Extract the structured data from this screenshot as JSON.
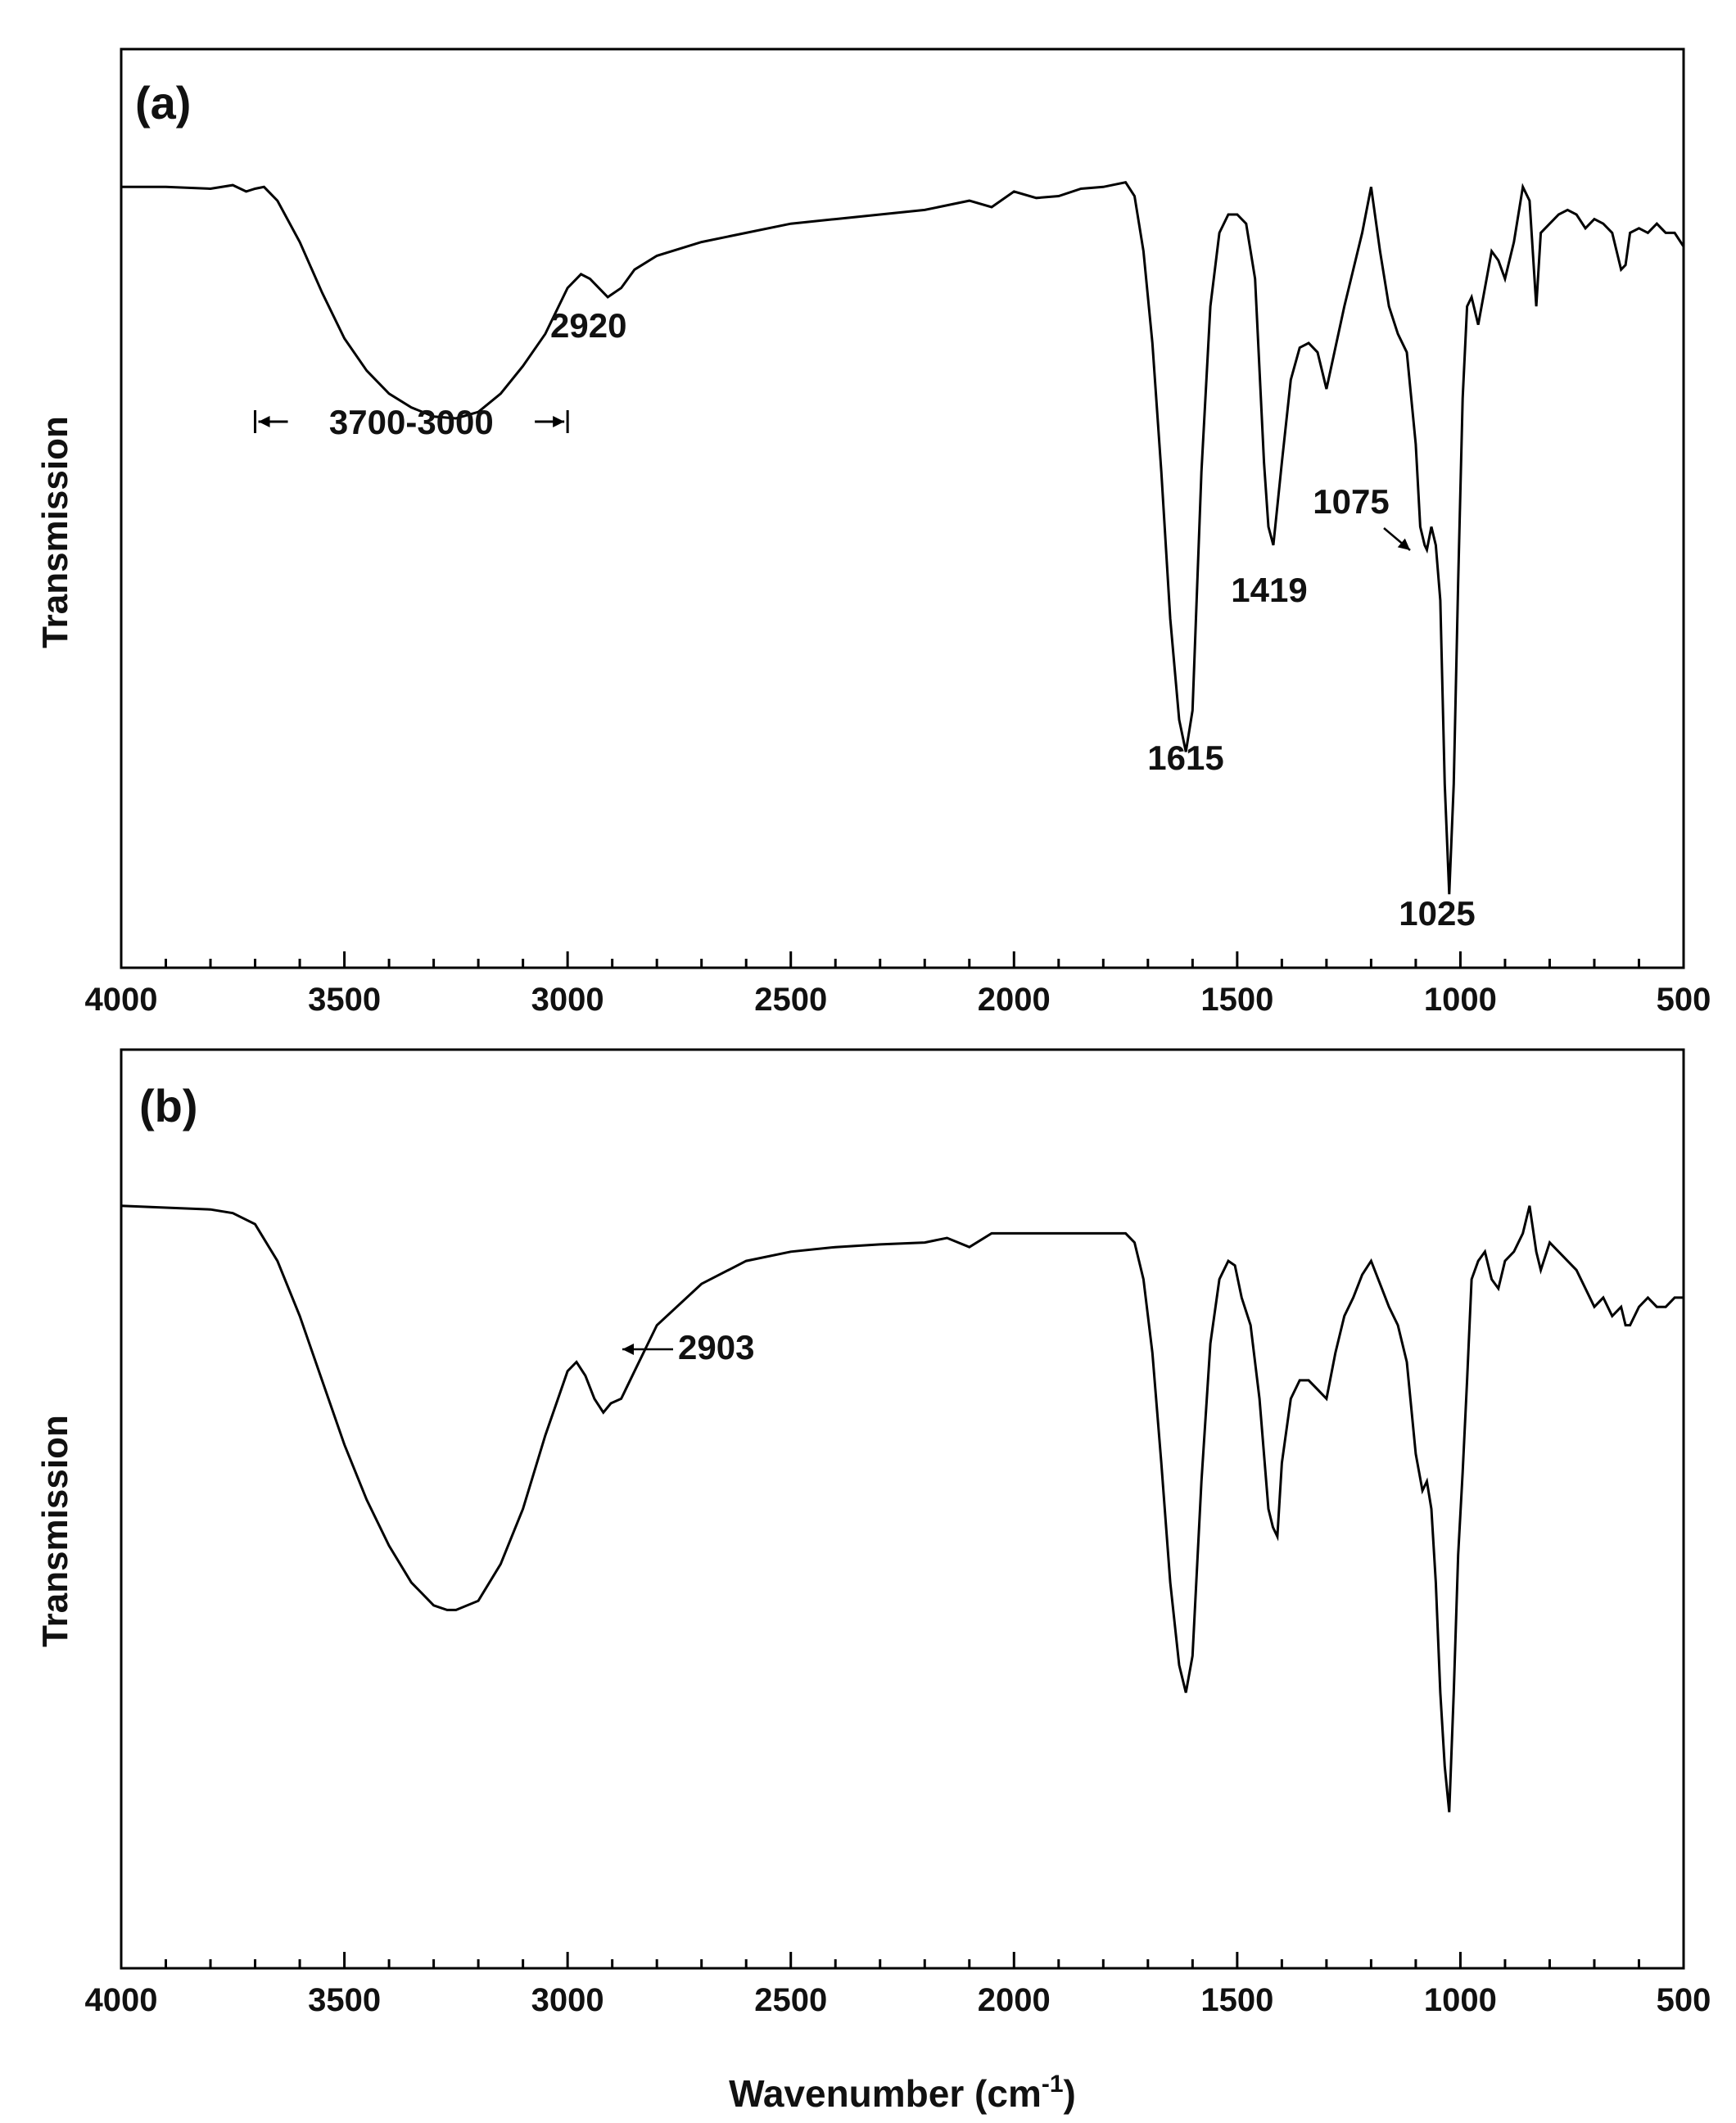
{
  "chart_data": [
    {
      "type": "line",
      "panel_label": "(a)",
      "xlabel": "",
      "ylabel": "Transmission",
      "xlim": [
        4000,
        500
      ],
      "x_reversed": true,
      "xticks": [
        4000,
        3500,
        3000,
        2500,
        2000,
        1500,
        1000,
        500
      ],
      "xtick_labels": [
        "4000",
        "3500",
        "3000",
        "2500",
        "2000",
        "1500",
        "1000",
        "500"
      ],
      "y_ticks_shown": false,
      "ylim": [
        0,
        1
      ],
      "grid": false,
      "legend": "none",
      "series": [
        {
          "x": [
            4000,
            3900,
            3800,
            3750,
            3720,
            3700,
            3680,
            3650,
            3600,
            3550,
            3500,
            3450,
            3400,
            3350,
            3300,
            3250,
            3200,
            3150,
            3100,
            3050,
            3000,
            2970,
            2950,
            2930,
            2910,
            2880,
            2850,
            2800,
            2700,
            2600,
            2500,
            2400,
            2300,
            2200,
            2100,
            2050,
            2000,
            1950,
            1900,
            1850,
            1800,
            1750,
            1730,
            1710,
            1690,
            1670,
            1650,
            1630,
            1615,
            1600,
            1580,
            1560,
            1540,
            1520,
            1500,
            1480,
            1460,
            1440,
            1430,
            1419,
            1400,
            1380,
            1360,
            1340,
            1320,
            1300,
            1280,
            1260,
            1240,
            1220,
            1200,
            1180,
            1160,
            1140,
            1120,
            1100,
            1090,
            1080,
            1075,
            1065,
            1055,
            1045,
            1035,
            1025,
            1015,
            1005,
            995,
            985,
            975,
            960,
            945,
            930,
            915,
            900,
            880,
            860,
            845,
            830,
            820,
            800,
            780,
            760,
            740,
            720,
            700,
            680,
            660,
            640,
            630,
            620,
            600,
            580,
            560,
            540,
            520,
            500
          ],
          "y": [
            0.85,
            0.85,
            0.848,
            0.852,
            0.845,
            0.848,
            0.85,
            0.835,
            0.79,
            0.735,
            0.685,
            0.65,
            0.625,
            0.61,
            0.6,
            0.598,
            0.605,
            0.625,
            0.655,
            0.69,
            0.74,
            0.755,
            0.75,
            0.74,
            0.73,
            0.74,
            0.76,
            0.775,
            0.79,
            0.8,
            0.81,
            0.815,
            0.82,
            0.825,
            0.835,
            0.828,
            0.845,
            0.838,
            0.84,
            0.848,
            0.85,
            0.855,
            0.84,
            0.78,
            0.68,
            0.54,
            0.38,
            0.27,
            0.235,
            0.28,
            0.54,
            0.72,
            0.8,
            0.82,
            0.82,
            0.81,
            0.75,
            0.55,
            0.48,
            0.46,
            0.55,
            0.64,
            0.675,
            0.68,
            0.67,
            0.63,
            0.675,
            0.72,
            0.76,
            0.8,
            0.85,
            0.78,
            0.72,
            0.69,
            0.67,
            0.57,
            0.48,
            0.46,
            0.455,
            0.48,
            0.46,
            0.4,
            0.2,
            0.08,
            0.2,
            0.42,
            0.62,
            0.72,
            0.73,
            0.7,
            0.74,
            0.78,
            0.77,
            0.75,
            0.79,
            0.85,
            0.835,
            0.72,
            0.8,
            0.81,
            0.82,
            0.825,
            0.82,
            0.805,
            0.815,
            0.81,
            0.8,
            0.76,
            0.765,
            0.8,
            0.805,
            0.8,
            0.81,
            0.8,
            0.8,
            0.785
          ]
        }
      ],
      "annotations": [
        {
          "text": "2920",
          "x": 2920
        },
        {
          "text": "3700-3000",
          "x_range": [
            3700,
            3000
          ]
        },
        {
          "text": "1615",
          "x": 1615
        },
        {
          "text": "1419",
          "x": 1419
        },
        {
          "text": "1075",
          "x": 1075
        },
        {
          "text": "1025",
          "x": 1025
        }
      ]
    },
    {
      "type": "line",
      "panel_label": "(b)",
      "xlabel": "Wavenumber (cm",
      "xlabel_superscript": "-1",
      "xlabel_suffix": ")",
      "ylabel": "Transmission",
      "xlim": [
        4000,
        500
      ],
      "x_reversed": true,
      "xticks": [
        4000,
        3500,
        3000,
        2500,
        2000,
        1500,
        1000,
        500
      ],
      "xtick_labels": [
        "4000",
        "3500",
        "3000",
        "2500",
        "2000",
        "1500",
        "1000",
        "500"
      ],
      "y_ticks_shown": false,
      "ylim": [
        0,
        1
      ],
      "grid": false,
      "legend": "none",
      "series": [
        {
          "x": [
            4000,
            3900,
            3800,
            3750,
            3700,
            3650,
            3600,
            3550,
            3500,
            3450,
            3400,
            3350,
            3300,
            3270,
            3250,
            3200,
            3150,
            3100,
            3050,
            3000,
            2980,
            2960,
            2940,
            2920,
            2903,
            2880,
            2850,
            2800,
            2700,
            2600,
            2500,
            2400,
            2300,
            2200,
            2150,
            2100,
            2050,
            2000,
            1950,
            1900,
            1850,
            1800,
            1750,
            1730,
            1710,
            1690,
            1670,
            1650,
            1630,
            1615,
            1600,
            1580,
            1560,
            1540,
            1520,
            1505,
            1490,
            1470,
            1450,
            1430,
            1420,
            1410,
            1400,
            1380,
            1360,
            1340,
            1320,
            1300,
            1280,
            1260,
            1240,
            1220,
            1200,
            1180,
            1160,
            1140,
            1120,
            1100,
            1085,
            1075,
            1065,
            1055,
            1045,
            1035,
            1025,
            1015,
            1005,
            995,
            985,
            975,
            960,
            945,
            930,
            915,
            900,
            880,
            860,
            845,
            830,
            820,
            800,
            780,
            760,
            740,
            720,
            700,
            680,
            660,
            640,
            630,
            620,
            600,
            580,
            560,
            540,
            520,
            500
          ],
          "y": [
            0.83,
            0.828,
            0.826,
            0.822,
            0.81,
            0.77,
            0.71,
            0.64,
            0.57,
            0.51,
            0.46,
            0.42,
            0.395,
            0.39,
            0.39,
            0.4,
            0.44,
            0.5,
            0.58,
            0.65,
            0.66,
            0.645,
            0.62,
            0.605,
            0.615,
            0.62,
            0.65,
            0.7,
            0.745,
            0.77,
            0.78,
            0.785,
            0.788,
            0.79,
            0.795,
            0.785,
            0.8,
            0.8,
            0.8,
            0.8,
            0.8,
            0.8,
            0.8,
            0.79,
            0.75,
            0.67,
            0.55,
            0.42,
            0.33,
            0.3,
            0.34,
            0.53,
            0.68,
            0.75,
            0.77,
            0.765,
            0.73,
            0.7,
            0.62,
            0.5,
            0.48,
            0.47,
            0.55,
            0.62,
            0.64,
            0.64,
            0.63,
            0.62,
            0.67,
            0.71,
            0.73,
            0.755,
            0.77,
            0.745,
            0.72,
            0.7,
            0.66,
            0.56,
            0.52,
            0.53,
            0.5,
            0.42,
            0.3,
            0.22,
            0.17,
            0.3,
            0.45,
            0.54,
            0.64,
            0.75,
            0.77,
            0.78,
            0.75,
            0.74,
            0.77,
            0.78,
            0.8,
            0.83,
            0.78,
            0.76,
            0.79,
            0.78,
            0.77,
            0.76,
            0.74,
            0.72,
            0.73,
            0.71,
            0.72,
            0.7,
            0.7,
            0.72,
            0.73,
            0.72,
            0.72,
            0.73,
            0.73
          ]
        }
      ],
      "annotations": [
        {
          "text": "2903",
          "x": 2903
        }
      ]
    }
  ]
}
